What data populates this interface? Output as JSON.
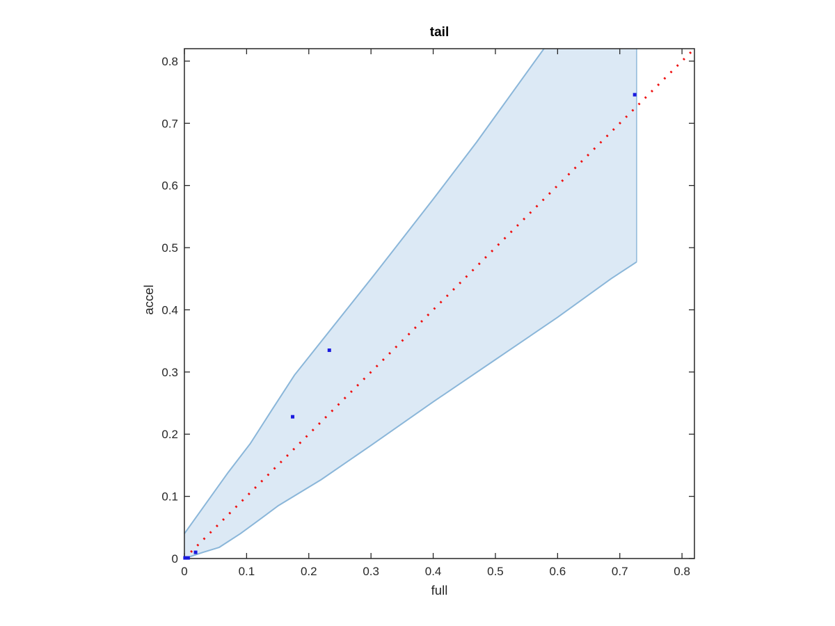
{
  "figure": {
    "title": "tail",
    "xlabel": "full",
    "ylabel": "accel"
  },
  "chart_data": {
    "type": "scatter",
    "title": "tail",
    "xlabel": "full",
    "ylabel": "accel",
    "xlim": [
      0,
      0.82
    ],
    "ylim": [
      0,
      0.82
    ],
    "grid": false,
    "legend": null,
    "xticks": {
      "values": [
        0,
        0.1,
        0.2,
        0.3,
        0.4,
        0.5,
        0.6,
        0.7,
        0.8
      ],
      "labels": [
        "0",
        "0.1",
        "0.2",
        "0.3",
        "0.4",
        "0.5",
        "0.6",
        "0.7",
        "0.8"
      ]
    },
    "yticks": {
      "values": [
        0,
        0.1,
        0.2,
        0.3,
        0.4,
        0.5,
        0.6,
        0.7,
        0.8
      ],
      "labels": [
        "0",
        "0.1",
        "0.2",
        "0.3",
        "0.4",
        "0.5",
        "0.6",
        "0.7",
        "0.8"
      ]
    },
    "points": [
      [
        0.001,
        0.001
      ],
      [
        0.006,
        0.001
      ],
      [
        0.018,
        0.01
      ],
      [
        0.174,
        0.228
      ],
      [
        0.233,
        0.335
      ],
      [
        0.724,
        0.746
      ]
    ],
    "identity_line": {
      "x": [
        0,
        0.82
      ],
      "y": [
        0,
        0.82
      ],
      "style": "dotted"
    },
    "confidence_band": {
      "lower": [
        [
          0,
          0
        ],
        [
          0.03,
          0.01
        ],
        [
          0.056,
          0.018
        ],
        [
          0.09,
          0.04
        ],
        [
          0.12,
          0.062
        ],
        [
          0.151,
          0.085
        ],
        [
          0.22,
          0.127
        ],
        [
          0.3,
          0.182
        ],
        [
          0.4,
          0.252
        ],
        [
          0.5,
          0.32
        ],
        [
          0.6,
          0.388
        ],
        [
          0.686,
          0.45
        ],
        [
          0.727,
          0.477
        ]
      ],
      "upper": [
        [
          0,
          0.04
        ],
        [
          0.03,
          0.082
        ],
        [
          0.07,
          0.138
        ],
        [
          0.106,
          0.185
        ],
        [
          0.14,
          0.238
        ],
        [
          0.177,
          0.295
        ],
        [
          0.231,
          0.363
        ],
        [
          0.305,
          0.456
        ],
        [
          0.4,
          0.578
        ],
        [
          0.47,
          0.67
        ],
        [
          0.578,
          0.82
        ]
      ],
      "right_edge_x": 0.727,
      "top_clip_y": 0.82
    },
    "colors": {
      "band_fill": "#dce9f5",
      "band_edge": "#8ab6d9",
      "identity_line": "#ee1111",
      "marker": "#1a1adf",
      "spine": "#262626",
      "tick_label": "#262626"
    }
  }
}
